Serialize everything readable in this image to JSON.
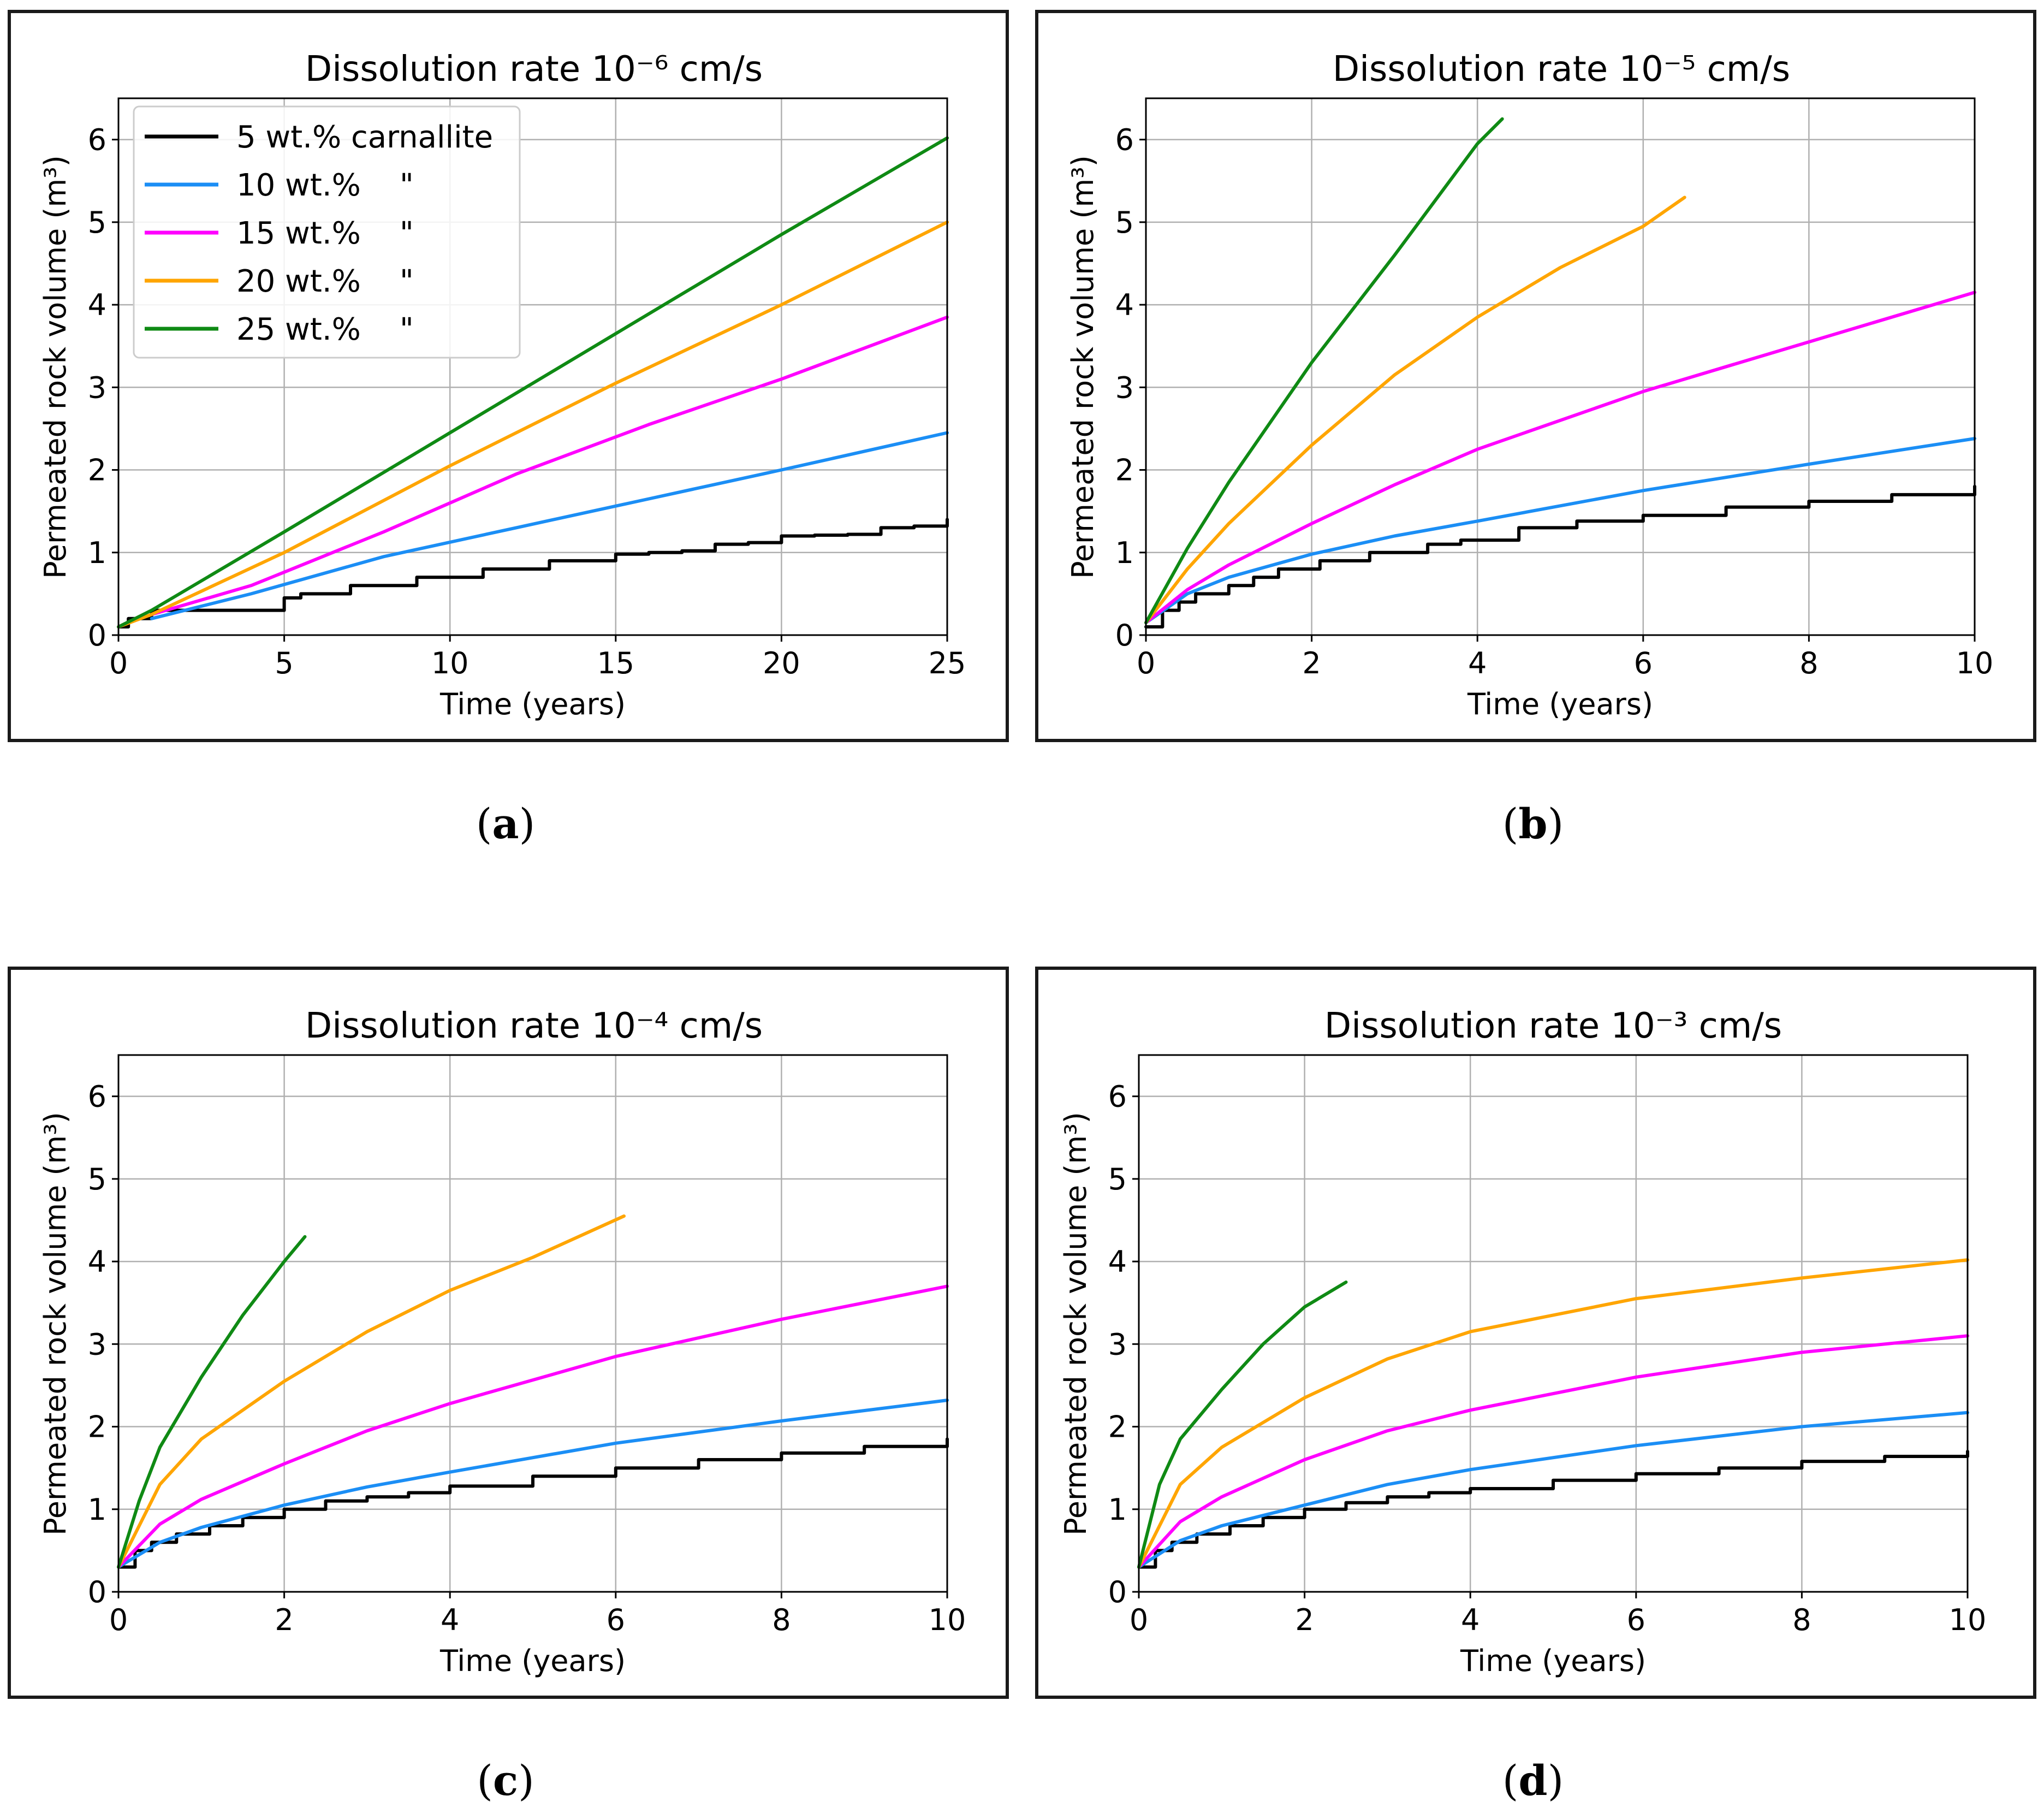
{
  "panels": [
    {
      "label_letter": "a",
      "chart_data": {
        "type": "line",
        "title": "Dissolution rate 10⁻⁶ cm/s",
        "xlabel": "Time (years)",
        "ylabel": "Permeated rock volume (m³)",
        "xlim": [
          0,
          25
        ],
        "ylim": [
          0,
          6.5
        ],
        "xticks": [
          0,
          5,
          10,
          15,
          20,
          25
        ],
        "yticks": [
          0,
          1,
          2,
          3,
          4,
          5,
          6
        ],
        "grid": true,
        "legend": {
          "placement": "upper-left",
          "entries": [
            "5 wt.% carnallite",
            "10 wt.%    \"",
            "15 wt.%    \"",
            "20 wt.%    \"",
            "25 wt.%    \""
          ]
        },
        "series": [
          {
            "name": "5 wt.% carnallite",
            "color": "#000000",
            "style": "step",
            "x": [
              0,
              0.3,
              1,
              2,
              3,
              5,
              5.5,
              6,
              7,
              8,
              9,
              10,
              11,
              12,
              13,
              14,
              15,
              16,
              17,
              18,
              19,
              20,
              21,
              22,
              23,
              24,
              25
            ],
            "y": [
              0.1,
              0.2,
              0.3,
              0.3,
              0.3,
              0.45,
              0.5,
              0.5,
              0.6,
              0.6,
              0.7,
              0.7,
              0.8,
              0.8,
              0.9,
              0.9,
              0.98,
              1.0,
              1.02,
              1.1,
              1.12,
              1.2,
              1.21,
              1.22,
              1.3,
              1.32,
              1.4
            ]
          },
          {
            "name": "10 wt.%",
            "color": "#1b8ef5",
            "x": [
              1,
              4,
              8,
              12,
              16,
              20,
              25
            ],
            "y": [
              0.2,
              0.5,
              0.95,
              1.3,
              1.65,
              2.0,
              2.45
            ]
          },
          {
            "name": "15 wt.%",
            "color": "#ff00ff",
            "x": [
              1,
              4,
              8,
              12,
              16,
              20,
              25
            ],
            "y": [
              0.25,
              0.6,
              1.25,
              1.95,
              2.55,
              3.1,
              3.85
            ]
          },
          {
            "name": "20 wt.%",
            "color": "#ffa500",
            "x": [
              0,
              1,
              5,
              10,
              15,
              20,
              25
            ],
            "y": [
              0.1,
              0.25,
              1.0,
              2.05,
              3.05,
              4.0,
              5.0
            ]
          },
          {
            "name": "25 wt.%",
            "color": "#0f8a14",
            "x": [
              0,
              1,
              5,
              10,
              15,
              20,
              25
            ],
            "y": [
              0.1,
              0.3,
              1.25,
              2.45,
              3.65,
              4.85,
              6.02
            ]
          }
        ]
      }
    },
    {
      "label_letter": "b",
      "chart_data": {
        "type": "line",
        "title": "Dissolution rate 10⁻⁵ cm/s",
        "xlabel": "Time (years)",
        "ylabel": "Permeated rock volume (m³)",
        "xlim": [
          0,
          10
        ],
        "ylim": [
          0,
          6.5
        ],
        "xticks": [
          0,
          2,
          4,
          6,
          8,
          10
        ],
        "yticks": [
          0,
          1,
          2,
          3,
          4,
          5,
          6
        ],
        "grid": true,
        "series": [
          {
            "name": "5 wt.% carnallite",
            "color": "#000000",
            "style": "step",
            "x": [
              0,
              0.2,
              0.4,
              0.6,
              1.0,
              1.3,
              1.6,
              2.1,
              2.7,
              3.4,
              3.8,
              4.5,
              5.2,
              6.0,
              7.0,
              8.0,
              9.0,
              10.0
            ],
            "y": [
              0.1,
              0.3,
              0.4,
              0.5,
              0.6,
              0.7,
              0.8,
              0.9,
              1.0,
              1.1,
              1.15,
              1.3,
              1.38,
              1.45,
              1.55,
              1.62,
              1.7,
              1.8
            ]
          },
          {
            "name": "10 wt.%",
            "color": "#1b8ef5",
            "x": [
              0,
              0.5,
              1,
              2,
              3,
              4,
              6,
              8,
              10
            ],
            "y": [
              0.15,
              0.5,
              0.7,
              0.98,
              1.2,
              1.38,
              1.75,
              2.07,
              2.38
            ]
          },
          {
            "name": "15 wt.%",
            "color": "#ff00ff",
            "x": [
              0,
              0.5,
              1,
              2,
              3,
              4,
              6,
              8,
              10
            ],
            "y": [
              0.15,
              0.55,
              0.85,
              1.35,
              1.82,
              2.25,
              2.95,
              3.55,
              4.15
            ]
          },
          {
            "name": "20 wt.%",
            "color": "#ffa500",
            "x": [
              0,
              0.5,
              1,
              2,
              3,
              4,
              5,
              6,
              6.5
            ],
            "y": [
              0.15,
              0.8,
              1.35,
              2.3,
              3.15,
              3.85,
              4.45,
              4.95,
              5.3
            ]
          },
          {
            "name": "25 wt.%",
            "color": "#0f8a14",
            "x": [
              0,
              0.5,
              1,
              2,
              3,
              4,
              4.3
            ],
            "y": [
              0.15,
              1.05,
              1.85,
              3.3,
              4.6,
              5.95,
              6.25
            ]
          }
        ]
      }
    },
    {
      "label_letter": "c",
      "chart_data": {
        "type": "line",
        "title": "Dissolution rate 10⁻⁴ cm/s",
        "xlabel": "Time (years)",
        "ylabel": "Permeated rock volume (m³)",
        "xlim": [
          0,
          10
        ],
        "ylim": [
          0,
          6.5
        ],
        "xticks": [
          0,
          2,
          4,
          6,
          8,
          10
        ],
        "yticks": [
          0,
          1,
          2,
          3,
          4,
          5,
          6
        ],
        "grid": true,
        "series": [
          {
            "name": "5 wt.% carnallite",
            "color": "#000000",
            "style": "step",
            "x": [
              0,
              0.2,
              0.4,
              0.7,
              1.1,
              1.5,
              2.0,
              2.5,
              3.0,
              3.5,
              4.0,
              5.0,
              6.0,
              7.0,
              8.0,
              9.0,
              10.0
            ],
            "y": [
              0.3,
              0.5,
              0.6,
              0.7,
              0.8,
              0.9,
              1.0,
              1.1,
              1.15,
              1.2,
              1.28,
              1.4,
              1.5,
              1.6,
              1.68,
              1.76,
              1.85
            ]
          },
          {
            "name": "10 wt.%",
            "color": "#1b8ef5",
            "x": [
              0,
              0.5,
              1,
              2,
              3,
              4,
              6,
              8,
              10
            ],
            "y": [
              0.3,
              0.6,
              0.78,
              1.05,
              1.27,
              1.45,
              1.8,
              2.07,
              2.32
            ]
          },
          {
            "name": "15 wt.%",
            "color": "#ff00ff",
            "x": [
              0,
              0.5,
              1,
              2,
              3,
              4,
              6,
              8,
              10
            ],
            "y": [
              0.3,
              0.82,
              1.12,
              1.55,
              1.95,
              2.28,
              2.85,
              3.3,
              3.7
            ]
          },
          {
            "name": "20 wt.%",
            "color": "#ffa500",
            "x": [
              0,
              0.5,
              1,
              2,
              3,
              4,
              5,
              6.1
            ],
            "y": [
              0.3,
              1.3,
              1.85,
              2.55,
              3.15,
              3.65,
              4.05,
              4.55
            ]
          },
          {
            "name": "25 wt.%",
            "color": "#0f8a14",
            "x": [
              0,
              0.25,
              0.5,
              1,
              1.5,
              2,
              2.25
            ],
            "y": [
              0.3,
              1.1,
              1.75,
              2.6,
              3.35,
              4.0,
              4.3
            ]
          }
        ]
      }
    },
    {
      "label_letter": "d",
      "chart_data": {
        "type": "line",
        "title": "Dissolution rate 10⁻³ cm/s",
        "xlabel": "Time (years)",
        "ylabel": "Permeated rock volume (m³)",
        "xlim": [
          0,
          10
        ],
        "ylim": [
          0,
          6.5
        ],
        "xticks": [
          0,
          2,
          4,
          6,
          8,
          10
        ],
        "yticks": [
          0,
          1,
          2,
          3,
          4,
          5,
          6
        ],
        "grid": true,
        "series": [
          {
            "name": "5 wt.% carnallite",
            "color": "#000000",
            "style": "step",
            "x": [
              0,
              0.2,
              0.4,
              0.7,
              1.1,
              1.5,
              2.0,
              2.5,
              3.0,
              3.5,
              4.0,
              5.0,
              6.0,
              7.0,
              8.0,
              9.0,
              10.0
            ],
            "y": [
              0.3,
              0.5,
              0.6,
              0.7,
              0.8,
              0.9,
              1.0,
              1.08,
              1.15,
              1.2,
              1.25,
              1.35,
              1.43,
              1.5,
              1.58,
              1.64,
              1.7
            ]
          },
          {
            "name": "10 wt.%",
            "color": "#1b8ef5",
            "x": [
              0,
              0.5,
              1,
              2,
              3,
              4,
              6,
              8,
              10
            ],
            "y": [
              0.3,
              0.62,
              0.8,
              1.05,
              1.3,
              1.48,
              1.77,
              2.0,
              2.17
            ]
          },
          {
            "name": "15 wt.%",
            "color": "#ff00ff",
            "x": [
              0,
              0.5,
              1,
              2,
              3,
              4,
              6,
              8,
              10
            ],
            "y": [
              0.3,
              0.85,
              1.15,
              1.6,
              1.95,
              2.2,
              2.6,
              2.9,
              3.1
            ]
          },
          {
            "name": "20 wt.%",
            "color": "#ffa500",
            "x": [
              0,
              0.5,
              1,
              2,
              3,
              4,
              6,
              8,
              10
            ],
            "y": [
              0.3,
              1.3,
              1.75,
              2.35,
              2.82,
              3.15,
              3.55,
              3.8,
              4.02
            ]
          },
          {
            "name": "25 wt.%",
            "color": "#0f8a14",
            "x": [
              0,
              0.25,
              0.5,
              1,
              1.5,
              2,
              2.5
            ],
            "y": [
              0.3,
              1.3,
              1.85,
              2.45,
              3.0,
              3.45,
              3.75
            ]
          }
        ]
      }
    }
  ]
}
